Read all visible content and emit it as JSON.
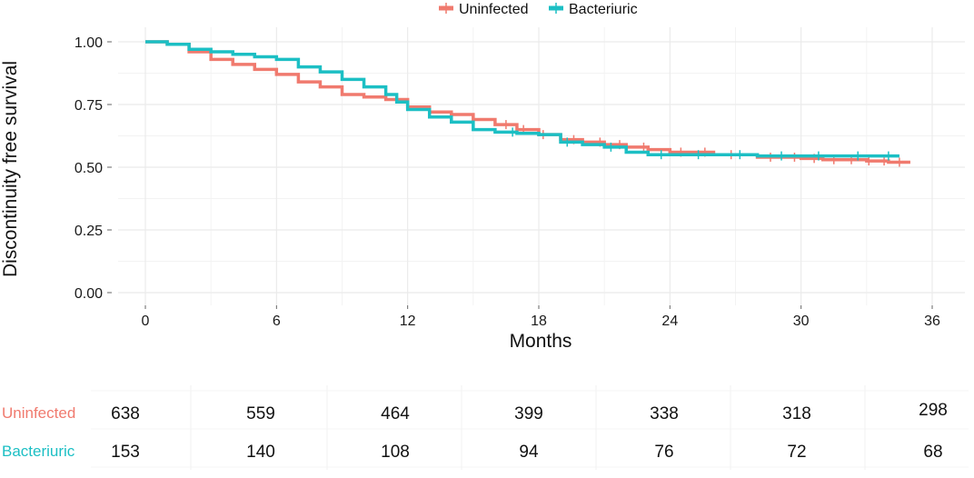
{
  "chart_data": {
    "type": "line",
    "subtype": "kaplan-meier step curve",
    "xlabel": "Months",
    "ylabel": "Discontinuity free survival",
    "xlim": [
      0,
      36
    ],
    "ylim": [
      0,
      1
    ],
    "x_ticks": [
      "0",
      "6",
      "12",
      "18",
      "24",
      "30",
      "36"
    ],
    "y_ticks": [
      "0.00",
      "0.25",
      "0.50",
      "0.75",
      "1.00"
    ],
    "grid": true,
    "legend_position": "top",
    "series": [
      {
        "name": "Uninfected",
        "color": "#f07a6e",
        "points": [
          [
            0,
            1.0
          ],
          [
            1,
            0.99
          ],
          [
            2,
            0.96
          ],
          [
            3,
            0.93
          ],
          [
            4,
            0.91
          ],
          [
            5,
            0.89
          ],
          [
            6,
            0.87
          ],
          [
            7,
            0.84
          ],
          [
            8,
            0.82
          ],
          [
            9,
            0.79
          ],
          [
            10,
            0.78
          ],
          [
            11,
            0.77
          ],
          [
            12,
            0.74
          ],
          [
            13,
            0.72
          ],
          [
            14,
            0.71
          ],
          [
            15,
            0.69
          ],
          [
            16,
            0.67
          ],
          [
            17,
            0.65
          ],
          [
            18,
            0.63
          ],
          [
            19,
            0.61
          ],
          [
            20,
            0.6
          ],
          [
            21,
            0.59
          ],
          [
            22,
            0.58
          ],
          [
            23,
            0.57
          ],
          [
            24,
            0.56
          ],
          [
            25,
            0.56
          ],
          [
            26,
            0.55
          ],
          [
            27,
            0.55
          ],
          [
            28,
            0.54
          ],
          [
            29,
            0.54
          ],
          [
            30,
            0.535
          ],
          [
            31,
            0.53
          ],
          [
            32,
            0.53
          ],
          [
            33,
            0.525
          ],
          [
            34,
            0.52
          ],
          [
            35,
            0.52
          ]
        ],
        "censor_x": [
          16.5,
          17.3,
          18.2,
          19.6,
          20.8,
          21.7,
          22.8,
          24.5,
          25.6,
          26.8,
          28.6,
          29.7,
          30.6,
          31.5,
          32.3,
          33.1,
          33.8,
          34.5
        ]
      },
      {
        "name": "Bacteriuric",
        "color": "#1cbfc4",
        "points": [
          [
            0,
            1.0
          ],
          [
            1,
            0.99
          ],
          [
            2,
            0.97
          ],
          [
            3,
            0.96
          ],
          [
            4,
            0.95
          ],
          [
            5,
            0.94
          ],
          [
            6,
            0.93
          ],
          [
            7,
            0.9
          ],
          [
            8,
            0.88
          ],
          [
            9,
            0.85
          ],
          [
            10,
            0.82
          ],
          [
            11,
            0.79
          ],
          [
            11.5,
            0.76
          ],
          [
            12,
            0.73
          ],
          [
            13,
            0.7
          ],
          [
            14,
            0.68
          ],
          [
            15,
            0.65
          ],
          [
            16,
            0.64
          ],
          [
            17,
            0.635
          ],
          [
            18,
            0.63
          ],
          [
            19,
            0.6
          ],
          [
            20,
            0.59
          ],
          [
            21,
            0.58
          ],
          [
            22,
            0.56
          ],
          [
            23,
            0.55
          ],
          [
            24,
            0.55
          ],
          [
            25,
            0.55
          ],
          [
            26,
            0.55
          ],
          [
            27,
            0.55
          ],
          [
            28,
            0.545
          ],
          [
            29,
            0.545
          ],
          [
            30,
            0.545
          ],
          [
            31,
            0.545
          ],
          [
            32,
            0.545
          ],
          [
            33,
            0.545
          ],
          [
            34,
            0.545
          ],
          [
            34.5,
            0.545
          ]
        ],
        "censor_x": [
          16.8,
          19.3,
          21.3,
          23.6,
          25.3,
          27.2,
          29.1,
          30.8,
          32.6,
          34.0
        ]
      }
    ],
    "risk_table": {
      "rows": [
        {
          "label": "Uninfected",
          "color": "#f07a6e",
          "counts": [
            "638",
            "559",
            "464",
            "399",
            "338",
            "318",
            "298"
          ]
        },
        {
          "label": "Bacteriuric",
          "color": "#1cbfc4",
          "counts": [
            "153",
            "140",
            "108",
            "94",
            "76",
            "72",
            "68"
          ]
        }
      ]
    }
  }
}
